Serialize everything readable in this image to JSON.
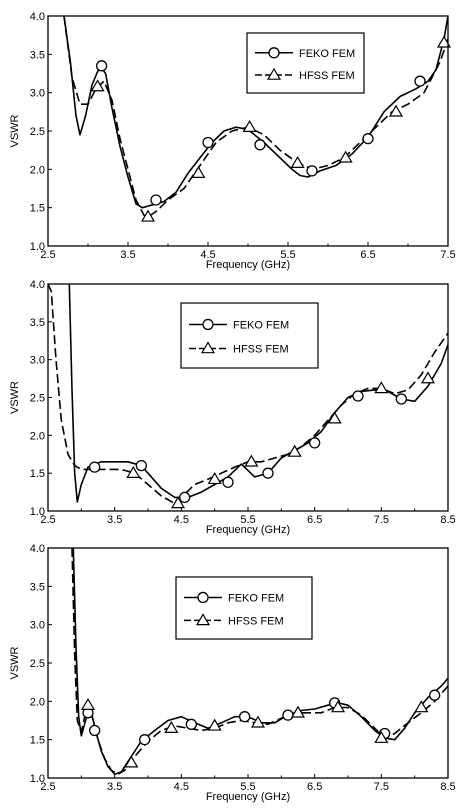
{
  "chart_data": [
    {
      "type": "line",
      "xlabel": "Frequency (GHz)",
      "ylabel": "VSWR",
      "xlim": [
        2.5,
        7.5
      ],
      "ylim": [
        1.0,
        4.0
      ],
      "xticks": [
        "2.5",
        "3.5",
        "4.5",
        "5.5",
        "6.5",
        "7.5"
      ],
      "yticks": [
        "1.0",
        "1.5",
        "2.0",
        "2.5",
        "3.0",
        "3.5",
        "4.0"
      ],
      "grid": false,
      "legend_position": "top-right",
      "series": [
        {
          "name": "FEKO FEM",
          "style": "solid",
          "marker": "circle",
          "x": [
            2.7,
            2.78,
            2.85,
            2.9,
            2.97,
            3.05,
            3.15,
            3.22,
            3.3,
            3.4,
            3.5,
            3.6,
            3.68,
            3.75,
            3.85,
            3.95,
            4.1,
            4.25,
            4.4,
            4.55,
            4.7,
            4.85,
            5.0,
            5.2,
            5.4,
            5.55,
            5.65,
            5.75,
            5.9,
            6.1,
            6.3,
            6.5,
            6.7,
            6.9,
            7.1,
            7.25,
            7.35,
            7.45,
            7.5
          ],
          "y": [
            4.0,
            3.4,
            2.7,
            2.45,
            2.7,
            3.1,
            3.35,
            3.25,
            2.8,
            2.3,
            1.9,
            1.55,
            1.5,
            1.52,
            1.55,
            1.58,
            1.7,
            1.95,
            2.15,
            2.35,
            2.5,
            2.55,
            2.52,
            2.35,
            2.15,
            2.0,
            1.92,
            1.9,
            1.98,
            2.05,
            2.2,
            2.42,
            2.75,
            2.95,
            3.05,
            3.15,
            3.3,
            3.7,
            4.0
          ],
          "marker_x": [
            3.17,
            3.85,
            4.5,
            5.15,
            5.8,
            6.5,
            7.15
          ],
          "marker_y": [
            3.35,
            1.6,
            2.35,
            2.32,
            1.98,
            2.4,
            3.15
          ]
        },
        {
          "name": "HFSS FEM",
          "style": "dashed",
          "marker": "triangle",
          "x": [
            2.7,
            2.8,
            2.9,
            3.0,
            3.1,
            3.2,
            3.3,
            3.4,
            3.5,
            3.6,
            3.7,
            3.75,
            3.85,
            4.0,
            4.2,
            4.4,
            4.6,
            4.8,
            5.0,
            5.2,
            5.4,
            5.6,
            5.8,
            6.0,
            6.2,
            6.4,
            6.6,
            6.8,
            7.0,
            7.2,
            7.4,
            7.5
          ],
          "y": [
            4.0,
            3.2,
            2.85,
            2.85,
            3.05,
            3.15,
            2.9,
            2.4,
            2.0,
            1.6,
            1.4,
            1.38,
            1.45,
            1.6,
            1.75,
            2.05,
            2.35,
            2.5,
            2.55,
            2.45,
            2.25,
            2.1,
            2.0,
            2.05,
            2.15,
            2.35,
            2.55,
            2.75,
            2.85,
            3.0,
            3.4,
            3.7
          ],
          "marker_x": [
            3.12,
            3.75,
            4.38,
            5.02,
            5.62,
            6.22,
            6.85,
            7.45
          ],
          "marker_y": [
            3.08,
            1.38,
            1.95,
            2.55,
            2.08,
            2.15,
            2.75,
            3.65
          ]
        }
      ]
    },
    {
      "type": "line",
      "xlabel": "Frequency (GHz)",
      "ylabel": "VSWR",
      "xlim": [
        2.5,
        8.5
      ],
      "ylim": [
        1.0,
        4.0
      ],
      "xticks": [
        "2.5",
        "3.5",
        "4.5",
        "5.5",
        "6.5",
        "7.5",
        "8.5"
      ],
      "yticks": [
        "1.0",
        "1.5",
        "2.0",
        "2.5",
        "3.0",
        "3.5",
        "4.0"
      ],
      "grid": false,
      "legend_position": "top-center",
      "series": [
        {
          "name": "FEKO FEM",
          "style": "solid",
          "marker": "circle",
          "x": [
            2.82,
            2.86,
            2.9,
            2.94,
            3.0,
            3.1,
            3.3,
            3.5,
            3.7,
            3.9,
            4.0,
            4.2,
            4.4,
            4.6,
            4.8,
            5.0,
            5.2,
            5.4,
            5.6,
            5.8,
            6.0,
            6.2,
            6.4,
            6.6,
            6.8,
            7.0,
            7.2,
            7.4,
            7.6,
            7.8,
            8.0,
            8.2,
            8.4,
            8.5
          ],
          "y": [
            4.0,
            2.6,
            1.5,
            1.12,
            1.35,
            1.58,
            1.65,
            1.65,
            1.65,
            1.6,
            1.5,
            1.3,
            1.18,
            1.18,
            1.25,
            1.35,
            1.45,
            1.62,
            1.45,
            1.5,
            1.7,
            1.8,
            1.9,
            2.05,
            2.3,
            2.5,
            2.58,
            2.6,
            2.58,
            2.48,
            2.45,
            2.65,
            2.95,
            3.2
          ],
          "marker_x": [
            3.2,
            3.9,
            4.55,
            5.2,
            5.8,
            6.5,
            7.15,
            7.8
          ],
          "marker_y": [
            1.58,
            1.6,
            1.18,
            1.38,
            1.5,
            1.9,
            2.52,
            2.48
          ]
        },
        {
          "name": "HFSS FEM",
          "style": "dashed",
          "marker": "triangle",
          "x": [
            2.5,
            2.55,
            2.62,
            2.7,
            2.8,
            2.9,
            3.0,
            3.2,
            3.4,
            3.6,
            3.8,
            4.0,
            4.2,
            4.4,
            4.5,
            4.7,
            4.9,
            5.1,
            5.3,
            5.5,
            5.7,
            5.9,
            6.1,
            6.3,
            6.5,
            6.7,
            6.9,
            7.1,
            7.3,
            7.5,
            7.7,
            7.9,
            8.1,
            8.3,
            8.5
          ],
          "y": [
            4.0,
            3.9,
            3.0,
            2.2,
            1.75,
            1.6,
            1.55,
            1.55,
            1.55,
            1.55,
            1.5,
            1.35,
            1.2,
            1.1,
            1.18,
            1.35,
            1.42,
            1.5,
            1.58,
            1.65,
            1.65,
            1.7,
            1.75,
            1.85,
            2.0,
            2.2,
            2.4,
            2.55,
            2.62,
            2.62,
            2.55,
            2.6,
            2.8,
            3.1,
            3.35
          ],
          "marker_x": [
            3.78,
            4.45,
            5.0,
            5.55,
            6.2,
            6.8,
            7.5,
            8.2
          ],
          "marker_y": [
            1.5,
            1.1,
            1.42,
            1.65,
            1.78,
            2.22,
            2.62,
            2.75
          ]
        }
      ]
    },
    {
      "type": "line",
      "xlabel": "Frequency (GHz)",
      "ylabel": "VSWR",
      "xlim": [
        2.5,
        8.5
      ],
      "ylim": [
        1.0,
        4.0
      ],
      "xticks": [
        "2.5",
        "3.5",
        "4.5",
        "5.5",
        "6.5",
        "7.5",
        "8.5"
      ],
      "yticks": [
        "1.0",
        "1.5",
        "2.0",
        "2.5",
        "3.0",
        "3.5",
        "4.0"
      ],
      "grid": false,
      "legend_position": "center",
      "series": [
        {
          "name": "FEKO FEM",
          "style": "solid",
          "marker": "circle",
          "x": [
            2.88,
            2.92,
            2.96,
            3.0,
            3.08,
            3.15,
            3.22,
            3.3,
            3.4,
            3.5,
            3.6,
            3.75,
            3.9,
            4.1,
            4.3,
            4.5,
            4.7,
            4.9,
            5.1,
            5.3,
            5.5,
            5.7,
            5.9,
            6.1,
            6.3,
            6.5,
            6.7,
            6.85,
            7.0,
            7.2,
            7.4,
            7.55,
            7.7,
            7.85,
            8.0,
            8.2,
            8.4,
            8.5
          ],
          "y": [
            4.0,
            2.7,
            1.8,
            1.55,
            1.8,
            1.85,
            1.6,
            1.35,
            1.15,
            1.05,
            1.08,
            1.28,
            1.48,
            1.62,
            1.75,
            1.8,
            1.72,
            1.65,
            1.72,
            1.8,
            1.8,
            1.72,
            1.72,
            1.82,
            1.88,
            1.9,
            1.95,
            1.98,
            1.95,
            1.8,
            1.62,
            1.52,
            1.5,
            1.65,
            1.85,
            2.05,
            2.2,
            2.3
          ],
          "marker_x": [
            3.1,
            3.2,
            3.95,
            4.65,
            5.45,
            6.1,
            6.8,
            7.55,
            8.3
          ],
          "marker_y": [
            1.85,
            1.62,
            1.5,
            1.7,
            1.8,
            1.82,
            1.98,
            1.58,
            2.08
          ]
        },
        {
          "name": "HFSS FEM",
          "style": "dashed",
          "marker": "triangle",
          "x": [
            2.86,
            2.9,
            2.94,
            3.0,
            3.08,
            3.15,
            3.25,
            3.35,
            3.45,
            3.55,
            3.65,
            3.8,
            4.0,
            4.2,
            4.4,
            4.6,
            4.8,
            5.0,
            5.2,
            5.4,
            5.6,
            5.8,
            6.0,
            6.2,
            6.4,
            6.6,
            6.8,
            7.0,
            7.2,
            7.4,
            7.55,
            7.7,
            7.9,
            8.1,
            8.3,
            8.5
          ],
          "y": [
            4.0,
            2.6,
            1.75,
            1.6,
            1.92,
            1.85,
            1.5,
            1.25,
            1.1,
            1.05,
            1.1,
            1.28,
            1.48,
            1.62,
            1.68,
            1.65,
            1.62,
            1.65,
            1.72,
            1.75,
            1.72,
            1.7,
            1.78,
            1.85,
            1.85,
            1.85,
            1.92,
            1.92,
            1.82,
            1.65,
            1.52,
            1.58,
            1.72,
            1.85,
            2.0,
            2.2
          ],
          "marker_x": [
            3.1,
            3.75,
            4.35,
            5.0,
            5.65,
            6.25,
            6.85,
            7.5,
            8.1
          ],
          "marker_y": [
            1.95,
            1.2,
            1.65,
            1.68,
            1.72,
            1.85,
            1.92,
            1.52,
            1.92
          ]
        }
      ]
    }
  ]
}
